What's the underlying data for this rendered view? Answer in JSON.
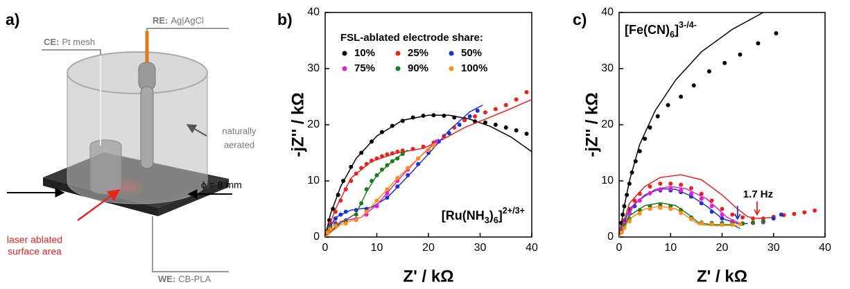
{
  "diagram": {
    "label": "a)",
    "re": {
      "key": "RE:",
      "text": "Ag|AgCl"
    },
    "ce": {
      "key": "CE:",
      "text": "Pt mesh"
    },
    "aerated": [
      "naturally",
      "aerated"
    ],
    "diameter": "ϕ = 8 mm",
    "laser": [
      "laser ablated",
      "surface area"
    ],
    "we": {
      "key": "WE:",
      "text": "CB-PLA"
    }
  },
  "chart_data": [
    {
      "type": "scatter",
      "label": "b)",
      "xlabel": "Z' / kΩ",
      "ylabel": "-jZ'' / kΩ",
      "xlim": [
        0,
        40
      ],
      "ylim": [
        0,
        40
      ],
      "xticks": [
        0,
        10,
        20,
        30,
        40
      ],
      "yticks": [
        0,
        10,
        20,
        30,
        40
      ],
      "legend_title": "FSL-ablated electrode share:",
      "annotation": [
        "[Ru(NH",
        "3",
        ")",
        "6",
        "]",
        "2+/3+"
      ],
      "annotation_styles": [
        "normal",
        "sub",
        "normal",
        "sub",
        "normal",
        "super"
      ],
      "series": [
        {
          "name": "10%",
          "color": "#000000",
          "x": [
            0.3,
            0.8,
            1.5,
            2.5,
            3.5,
            5,
            7,
            9,
            11,
            13,
            15,
            17,
            19,
            21,
            23,
            25,
            27,
            29,
            31,
            33,
            35,
            37,
            39
          ],
          "values": [
            1,
            3,
            5,
            7.5,
            10,
            12.5,
            15,
            17,
            18.7,
            19.8,
            20.7,
            21.3,
            21.6,
            21.7,
            21.6,
            21.3,
            21,
            20.6,
            20.4,
            20,
            19.5,
            19,
            18.4
          ],
          "fit_x": [
            0,
            1,
            3,
            6,
            10,
            15,
            20,
            24,
            28,
            32,
            36,
            40
          ],
          "fit_values": [
            0,
            4,
            9,
            14,
            18,
            20.8,
            21.7,
            21.7,
            21,
            19.7,
            17.8,
            15.2
          ]
        },
        {
          "name": "25%",
          "color": "#e8231f",
          "x": [
            0.5,
            1,
            2,
            3,
            4,
            5,
            6,
            7,
            8,
            9,
            10,
            11,
            12,
            13,
            14,
            15,
            17,
            19,
            21,
            23,
            25,
            27,
            29,
            31,
            33,
            35,
            37,
            39
          ],
          "values": [
            1,
            2.5,
            4.5,
            6.5,
            8.5,
            10,
            11.3,
            12.3,
            13,
            13.6,
            14,
            14.4,
            14.7,
            14.9,
            15.2,
            15.4,
            15.7,
            16.1,
            16.8,
            18,
            19.5,
            20.8,
            21.5,
            22.2,
            22.8,
            23.5,
            24.5,
            25.8
          ],
          "fit_x": [
            0,
            2,
            5,
            9,
            14,
            19,
            23,
            27,
            31,
            35,
            40
          ],
          "fit_values": [
            0,
            5,
            10.5,
            13.5,
            15,
            15.8,
            17.5,
            19.5,
            21,
            22.5,
            24.5
          ]
        },
        {
          "name": "50%",
          "color": "#1f2fd0",
          "x": [
            0.5,
            1,
            2,
            3,
            4,
            6,
            8,
            10,
            12,
            14,
            16,
            18,
            20,
            22,
            24,
            26,
            28,
            29.5
          ],
          "values": [
            1,
            2,
            3.3,
            4,
            4.5,
            4.8,
            5,
            5.5,
            7,
            9,
            11,
            13,
            15,
            17,
            18.5,
            20,
            21.5,
            22.5
          ],
          "fit_x": [
            0,
            2,
            5,
            9,
            12,
            16,
            20,
            24,
            28,
            30.5
          ],
          "fit_values": [
            0,
            3.5,
            4.8,
            5.3,
            7,
            10.8,
            14.8,
            19,
            22.3,
            23.5
          ]
        },
        {
          "name": "75%",
          "color": "#e020d0",
          "x": [
            0.5,
            1,
            2,
            4,
            6,
            8,
            10,
            12,
            14,
            16,
            18,
            20,
            21.5
          ],
          "values": [
            1,
            1.8,
            2.5,
            3,
            3.2,
            4,
            5.5,
            7.8,
            10,
            12,
            14,
            15.5,
            17
          ],
          "fit_x": [
            0,
            3,
            7,
            10,
            14,
            18,
            22
          ],
          "fit_values": [
            0,
            2.8,
            3.5,
            5.7,
            10,
            14,
            17.5
          ]
        },
        {
          "name": "90%",
          "color": "#1e7a1e",
          "x": [
            0.5,
            1,
            2,
            4,
            6,
            7,
            8,
            9,
            10,
            11,
            12,
            13,
            14,
            15
          ],
          "values": [
            1,
            1.7,
            2.3,
            2.7,
            4,
            6,
            8.5,
            10,
            11,
            12,
            12.8,
            13.5,
            14,
            14.8
          ],
          "fit_x": [
            0,
            3,
            6,
            8,
            10,
            13,
            16
          ],
          "fit_values": [
            0,
            2.5,
            4.2,
            8,
            11,
            13.5,
            15.5
          ]
        },
        {
          "name": "100%",
          "color": "#ff8c1a",
          "x": [
            0.5,
            1,
            2,
            4,
            6,
            8,
            10,
            12,
            14,
            16,
            18,
            20,
            21
          ],
          "values": [
            0.8,
            1.4,
            2,
            2.4,
            3,
            4.5,
            6.5,
            8.5,
            10.5,
            12.3,
            14,
            15.5,
            16.3
          ],
          "fit_x": [
            0,
            3,
            7,
            10,
            14,
            18,
            21.5
          ],
          "fit_values": [
            0,
            2.2,
            3.5,
            6.5,
            10.5,
            14,
            16.8
          ]
        }
      ]
    },
    {
      "type": "scatter",
      "label": "c)",
      "xlabel": "Z' / kΩ",
      "ylabel": "-jZ'' / kΩ",
      "xlim": [
        0,
        40
      ],
      "ylim": [
        0,
        40
      ],
      "xticks": [
        0,
        10,
        20,
        30,
        40
      ],
      "yticks": [
        0,
        10,
        20,
        30,
        40
      ],
      "annotation": [
        "[Fe(CN)",
        "6",
        "]",
        "3-/4-"
      ],
      "annotation_styles": [
        "normal",
        "sub",
        "normal",
        "super"
      ],
      "note": "1.7 Hz",
      "arrows": [
        {
          "x": 23,
          "y": 2.6,
          "color": "#1f2fd0"
        },
        {
          "x": 26.8,
          "y": 3.4,
          "color": "#e8231f"
        }
      ],
      "series": [
        {
          "color": "#000000",
          "x": [
            0.2,
            0.4,
            0.7,
            1,
            1.5,
            2,
            2.5,
            3.2,
            4,
            5,
            6,
            7.5,
            9.5,
            12,
            14.5,
            17.5,
            20.5,
            23.5,
            27,
            30.5
          ],
          "values": [
            1,
            2.5,
            4,
            5.5,
            7.5,
            9.5,
            11.5,
            13.5,
            15.3,
            17.5,
            19.5,
            21.5,
            23.5,
            25,
            27,
            29.5,
            31,
            32.5,
            34.5,
            36.3
          ],
          "fit_x": [
            0,
            1,
            2,
            4,
            7,
            11,
            16,
            22,
            28
          ],
          "fit_values": [
            0,
            5.5,
            10,
            16.5,
            22.5,
            28,
            33,
            37,
            40
          ]
        },
        {
          "color": "#e8231f",
          "x": [
            0.5,
            1,
            2,
            3,
            4,
            6,
            8,
            10,
            12,
            14,
            16,
            18,
            20,
            22,
            24,
            26,
            28,
            30,
            32,
            34,
            36,
            38
          ],
          "values": [
            1.5,
            3,
            5,
            6.5,
            7.7,
            9,
            9.5,
            9.5,
            9.3,
            8.7,
            7.7,
            6.5,
            5,
            4,
            3.5,
            3.3,
            3.3,
            3.6,
            3.9,
            4.1,
            4.4,
            4.7
          ],
          "fit_x": [
            0,
            2,
            5,
            8,
            12,
            16,
            20,
            23,
            25,
            27,
            30
          ],
          "fit_values": [
            0,
            6,
            9,
            10.6,
            11.1,
            10.2,
            7.5,
            5,
            3.6,
            3.3,
            3.5
          ]
        },
        {
          "color": "#1f2fd0",
          "x": [
            0.5,
            1,
            2,
            3,
            4,
            6,
            8,
            10,
            12,
            14,
            16,
            18,
            20,
            22,
            24,
            26,
            28,
            30,
            31.5
          ],
          "values": [
            1.3,
            2.5,
            4.3,
            5.5,
            6.5,
            7.8,
            8.3,
            8.3,
            8,
            7.2,
            6,
            4.5,
            3.3,
            2.6,
            2.4,
            2.5,
            2.8,
            3.3,
            4
          ],
          "fit_x": [
            0,
            2,
            5,
            8,
            11,
            14,
            17,
            20,
            23,
            25
          ],
          "fit_values": [
            0,
            5,
            7.5,
            8.6,
            8.5,
            7.3,
            5.5,
            3.3,
            2.4,
            2.4
          ]
        },
        {
          "color": "#e020d0",
          "x": [
            0.5,
            1,
            2,
            4,
            6,
            8,
            10,
            12,
            14,
            16,
            18,
            20,
            22,
            24,
            26,
            28
          ],
          "values": [
            1.2,
            2.4,
            4.2,
            6.5,
            7.8,
            8.5,
            8.6,
            8.3,
            7.7,
            6.8,
            5.5,
            4,
            2.8,
            2.4,
            2.5,
            2.6
          ],
          "fit_x": [
            0,
            3,
            7,
            10,
            13,
            17,
            21,
            24
          ],
          "fit_values": [
            0,
            6,
            8.5,
            9,
            8.6,
            6.8,
            3.5,
            2.2
          ]
        },
        {
          "color": "#1e7a1e",
          "x": [
            0.5,
            1,
            2,
            4,
            6,
            8,
            10,
            12,
            14,
            16,
            18,
            20,
            22,
            24,
            26,
            28
          ],
          "values": [
            1,
            2,
            3.3,
            4.8,
            5.5,
            5.7,
            5.5,
            4.8,
            3.5,
            2.6,
            2.5,
            2.5,
            2.4,
            2.4,
            2.6,
            2.8
          ],
          "fit_x": [
            0,
            2,
            5,
            8,
            11,
            13.5,
            15.5,
            18,
            22,
            23.5
          ],
          "fit_values": [
            0,
            3.8,
            5.6,
            6.1,
            5.6,
            4,
            2.5,
            2.2,
            2.2,
            1.5
          ]
        },
        {
          "color": "#ff8c1a",
          "x": [
            0.5,
            1,
            2,
            4,
            6,
            8,
            10,
            12,
            14,
            16,
            18,
            20,
            22,
            23.5
          ],
          "values": [
            0.8,
            1.6,
            2.8,
            4.2,
            5,
            5.2,
            5,
            4.3,
            3.2,
            2.5,
            2.3,
            2.2,
            2.2,
            2.3
          ],
          "fit_x": [
            0,
            2,
            5,
            8,
            11,
            13.5,
            15.5,
            19,
            23
          ],
          "fit_values": [
            0,
            3.2,
            5,
            5.5,
            5,
            3.5,
            2.2,
            2,
            2.1
          ]
        }
      ]
    }
  ]
}
